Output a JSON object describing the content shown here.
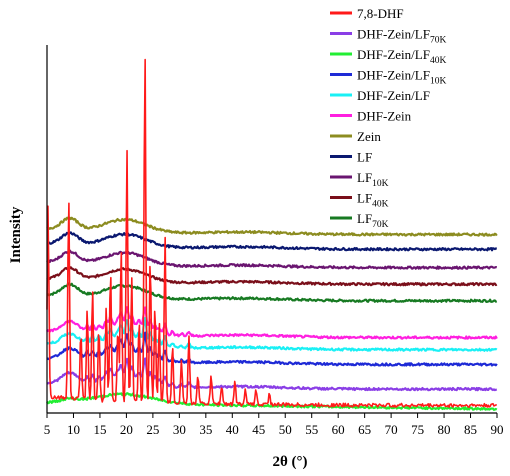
{
  "chart_data": {
    "type": "line",
    "title": "",
    "xlabel": "2θ (°)",
    "ylabel": "Intensity",
    "xlim": [
      5,
      90
    ],
    "ylim": [
      0,
      100
    ],
    "y_ticks_shown": false,
    "grid": false,
    "legend_position": "top-right",
    "x_ticks": [
      "5",
      "10",
      "15",
      "20",
      "25",
      "30",
      "35",
      "40",
      "45",
      "50",
      "55",
      "60",
      "65",
      "70",
      "75",
      "80",
      "85",
      "90"
    ],
    "series": [
      {
        "name": "7,8-DHF",
        "legend_base": "7,8-DHF",
        "legend_sub": "",
        "color": "#ff1a1a",
        "baseline": 2.0,
        "peaks_hump": false
      },
      {
        "name": "DHF-Zein/LF70K",
        "legend_base": "DHF-Zein/LF",
        "legend_sub": "70K",
        "color": "#8a3ee6",
        "baseline": 6.5,
        "peaks_hump": true
      },
      {
        "name": "DHF-Zein/LF40K",
        "legend_base": "DHF-Zein/LF",
        "legend_sub": "40K",
        "color": "#22ee33",
        "baseline": 2.8,
        "peaks_hump": true
      },
      {
        "name": "DHF-Zein/LF10K",
        "legend_base": "DHF-Zein/LF",
        "legend_sub": "10K",
        "color": "#1e2ad6",
        "baseline": 13.2,
        "peaks_hump": true
      },
      {
        "name": "DHF-Zein/LF",
        "legend_base": "DHF-Zein/LF",
        "legend_sub": "",
        "color": "#19f0f5",
        "baseline": 17.2,
        "peaks_hump": true
      },
      {
        "name": "DHF-Zein",
        "legend_base": "DHF-Zein",
        "legend_sub": "",
        "color": "#ff1fe0",
        "baseline": 20.5,
        "peaks_hump": true
      },
      {
        "name": "Zein",
        "legend_base": "Zein",
        "legend_sub": "",
        "color": "#8c8c20",
        "baseline": 48.5,
        "peaks_hump": true
      },
      {
        "name": "LF",
        "legend_base": "LF",
        "legend_sub": "",
        "color": "#0a1870",
        "baseline": 44.5,
        "peaks_hump": true
      },
      {
        "name": "LF10K",
        "legend_base": "LF",
        "legend_sub": "10K",
        "color": "#6a1570",
        "baseline": 39.5,
        "peaks_hump": true
      },
      {
        "name": "LF40K",
        "legend_base": "LF",
        "legend_sub": "40K",
        "color": "#7a0f1a",
        "baseline": 35.0,
        "peaks_hump": true
      },
      {
        "name": "LF70K",
        "legend_base": "LF",
        "legend_sub": "70K",
        "color": "#177a22",
        "baseline": 30.5,
        "peaks_hump": true
      }
    ],
    "dhf_peaks": [
      {
        "x": 5.2,
        "h": 52
      },
      {
        "x": 9.1,
        "h": 55
      },
      {
        "x": 11.4,
        "h": 18
      },
      {
        "x": 12.6,
        "h": 25
      },
      {
        "x": 13.6,
        "h": 30
      },
      {
        "x": 14.8,
        "h": 20
      },
      {
        "x": 16.2,
        "h": 26
      },
      {
        "x": 17.0,
        "h": 36
      },
      {
        "x": 18.4,
        "h": 20
      },
      {
        "x": 19.0,
        "h": 42
      },
      {
        "x": 20.1,
        "h": 69
      },
      {
        "x": 21.0,
        "h": 34
      },
      {
        "x": 22.4,
        "h": 22
      },
      {
        "x": 23.5,
        "h": 96
      },
      {
        "x": 24.5,
        "h": 40
      },
      {
        "x": 25.4,
        "h": 26
      },
      {
        "x": 26.2,
        "h": 22
      },
      {
        "x": 27.3,
        "h": 45
      },
      {
        "x": 28.7,
        "h": 16
      },
      {
        "x": 30.4,
        "h": 12
      },
      {
        "x": 31.8,
        "h": 18
      },
      {
        "x": 33.5,
        "h": 8
      },
      {
        "x": 36.0,
        "h": 8
      },
      {
        "x": 38.0,
        "h": 5
      },
      {
        "x": 40.5,
        "h": 6
      },
      {
        "x": 42.5,
        "h": 4
      },
      {
        "x": 44.5,
        "h": 4
      },
      {
        "x": 47.0,
        "h": 3
      }
    ]
  }
}
